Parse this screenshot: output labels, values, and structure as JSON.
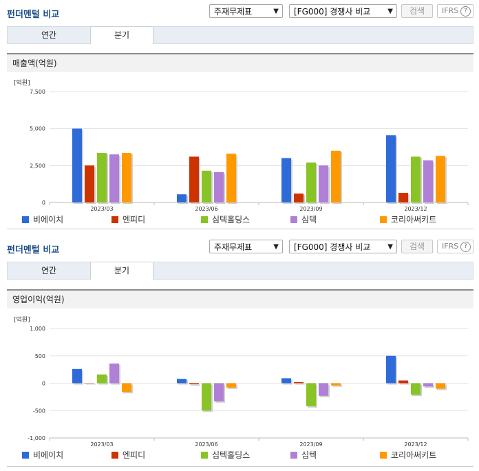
{
  "panels": [
    {
      "header_title": "펀더멘털 비교",
      "select_unit": "주재무제표",
      "select_compare": "[FG000] 경쟁사 비교",
      "search_label": "검색",
      "ifrs_label": "IFRS",
      "help_glyph": "?",
      "tabs": [
        {
          "label": "연간"
        },
        {
          "label": "분기"
        }
      ],
      "active_tab": 1,
      "section_title": "매출액(억원)"
    },
    {
      "header_title": "펀더멘털 비교",
      "select_unit": "주재무제표",
      "select_compare": "[FG000] 경쟁사 비교",
      "search_label": "검색",
      "ifrs_label": "IFRS",
      "help_glyph": "?",
      "tabs": [
        {
          "label": "연간"
        },
        {
          "label": "분기"
        }
      ],
      "active_tab": 1,
      "section_title": "영업이익(억원)"
    }
  ],
  "chart_data": [
    {
      "type": "bar",
      "unit_label": "[억원]",
      "categories": [
        "2023/03",
        "2023/06",
        "2023/09",
        "2023/12"
      ],
      "ylim": [
        0,
        7500
      ],
      "yticks": [
        0,
        2500,
        5000,
        7500
      ],
      "ytick_labels": [
        "0",
        "2,500",
        "5,000",
        "7,500"
      ],
      "series": [
        {
          "name": "비에이치",
          "color": "#2e6bd8",
          "values": [
            5000,
            550,
            3000,
            4550
          ]
        },
        {
          "name": "엔피디",
          "color": "#cc3300",
          "values": [
            2500,
            3100,
            600,
            650
          ]
        },
        {
          "name": "심텍홀딩스",
          "color": "#88c425",
          "values": [
            3350,
            2150,
            2700,
            3100
          ]
        },
        {
          "name": "심텍",
          "color": "#b07fd6",
          "values": [
            3250,
            2050,
            2500,
            2850
          ]
        },
        {
          "name": "코리아써키트",
          "color": "#ff9900",
          "values": [
            3350,
            3300,
            3500,
            3150
          ]
        }
      ]
    },
    {
      "type": "bar",
      "unit_label": "[억원]",
      "categories": [
        "2023/03",
        "2023/06",
        "2023/09",
        "2023/12"
      ],
      "ylim": [
        -1000,
        1000
      ],
      "yticks": [
        -1000,
        -500,
        0,
        500,
        1000
      ],
      "ytick_labels": [
        "-1,000",
        "-500",
        "0",
        "500",
        "1,000"
      ],
      "series": [
        {
          "name": "비에이치",
          "color": "#2e6bd8",
          "values": [
            260,
            80,
            90,
            500
          ]
        },
        {
          "name": "엔피디",
          "color": "#cc3300",
          "values": [
            0,
            -20,
            20,
            50
          ]
        },
        {
          "name": "심텍홀딩스",
          "color": "#88c425",
          "values": [
            160,
            -500,
            -420,
            -210
          ]
        },
        {
          "name": "심텍",
          "color": "#b07fd6",
          "values": [
            360,
            -330,
            -230,
            -60
          ]
        },
        {
          "name": "코리아써키트",
          "color": "#ff9900",
          "values": [
            -160,
            -80,
            -40,
            -100
          ]
        }
      ]
    }
  ]
}
